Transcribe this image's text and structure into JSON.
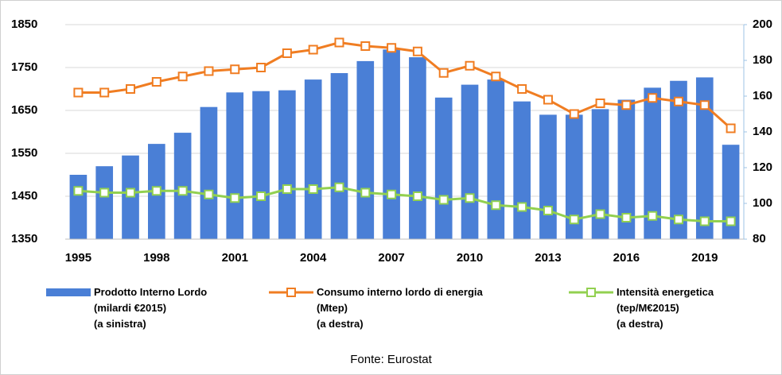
{
  "chart_data": {
    "type": "bar",
    "categories": [
      "1995",
      null,
      null,
      "1998",
      null,
      null,
      "2001",
      null,
      null,
      "2004",
      null,
      null,
      "2007",
      null,
      null,
      "2010",
      null,
      null,
      "2013",
      null,
      null,
      "2016",
      null,
      null,
      "2019",
      null
    ],
    "series": [
      {
        "name": "Prodotto Interno Lordo\n(milardi €2015)\n(a sinistra)",
        "type": "bar",
        "axis": "y",
        "color": "#4a7fd6",
        "values": [
          1500,
          1520,
          1545,
          1572,
          1598,
          1658,
          1692,
          1695,
          1697,
          1722,
          1737,
          1765,
          1792,
          1774,
          1680,
          1710,
          1722,
          1671,
          1640,
          1640,
          1653,
          1675,
          1703,
          1719,
          1727,
          1570
        ]
      },
      {
        "name": "Consumo interno lordo di energia\n(Mtep)\n(a destra)",
        "type": "line",
        "axis": "y2",
        "color": "#f07d22",
        "values": [
          162,
          162,
          164,
          168,
          171,
          174,
          175,
          176,
          184,
          186,
          190,
          188,
          187,
          185,
          173,
          177,
          171,
          164,
          158,
          150,
          156,
          155,
          159,
          157,
          155,
          142
        ]
      },
      {
        "name": "Intensità energetica\n(tep/M€2015)\n(a destra)",
        "type": "line",
        "axis": "y2",
        "color": "#92d050",
        "values": [
          107,
          106,
          106,
          107,
          107,
          105,
          103,
          104,
          108,
          108,
          109,
          106,
          105,
          104,
          102,
          103,
          99,
          98,
          96,
          91,
          94,
          92,
          93,
          91,
          90,
          90
        ]
      }
    ],
    "ylim": [
      1350,
      1850
    ],
    "yticks": [
      1350,
      1450,
      1550,
      1650,
      1750,
      1850
    ],
    "y2lim": [
      80,
      200
    ],
    "y2ticks": [
      80,
      100,
      120,
      140,
      160,
      180,
      200
    ],
    "grid": true,
    "source": "Fonte: Eurostat"
  }
}
